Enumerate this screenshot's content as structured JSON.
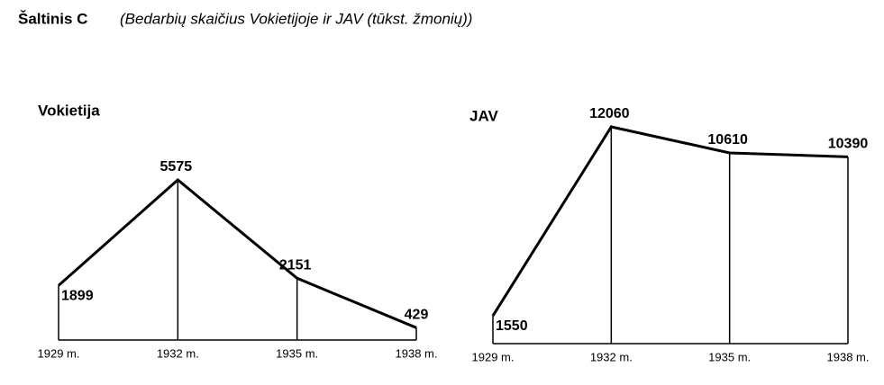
{
  "title": "Šaltinis C",
  "subtitle": "(Bedarbių skaičius Vokietijoje ir JAV (tūkst. žmonių))",
  "chart_data": [
    {
      "type": "line",
      "title": "Vokietija",
      "categories": [
        "1929 m.",
        "1932 m.",
        "1935 m.",
        "1938 m."
      ],
      "values": [
        1899,
        5575,
        2151,
        429
      ],
      "color": "#000000"
    },
    {
      "type": "line",
      "title": "JAV",
      "categories": [
        "1929 m.",
        "1932 m.",
        "1935 m.",
        "1938 m."
      ],
      "values": [
        1550,
        12060,
        10610,
        10390
      ],
      "color": "#000000"
    }
  ]
}
